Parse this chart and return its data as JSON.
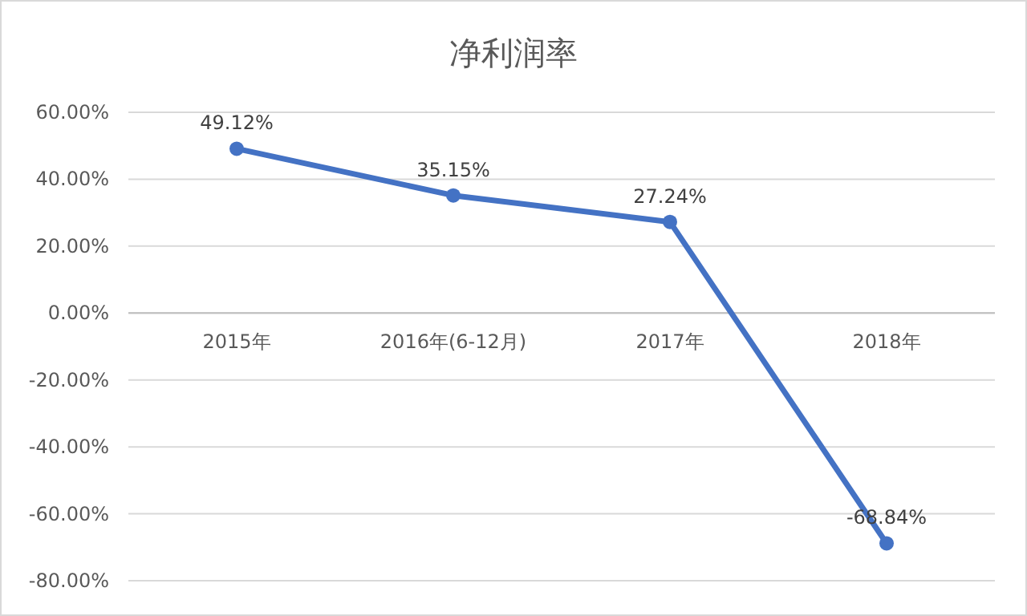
{
  "chart_data": {
    "type": "line",
    "title": "净利润率",
    "categories": [
      "2015年",
      "2016年(6-12月)",
      "2017年",
      "2018年"
    ],
    "values": [
      49.12,
      35.15,
      27.24,
      -68.84
    ],
    "value_labels": [
      "49.12%",
      "35.15%",
      "27.24%",
      "-68.84%"
    ],
    "color": "#4472c4",
    "marker": "circle",
    "grid": "y",
    "ylim": [
      -80,
      60
    ],
    "yticks": [
      {
        "value": -80,
        "label": "-80.00%"
      },
      {
        "value": -60,
        "label": "-60.00%"
      },
      {
        "value": -40,
        "label": "-40.00%"
      },
      {
        "value": -20,
        "label": "-20.00%"
      },
      {
        "value": 0,
        "label": "0.00%"
      },
      {
        "value": 20,
        "label": "20.00%"
      },
      {
        "value": 40,
        "label": "40.00%"
      },
      {
        "value": 60,
        "label": "60.00%"
      }
    ]
  }
}
